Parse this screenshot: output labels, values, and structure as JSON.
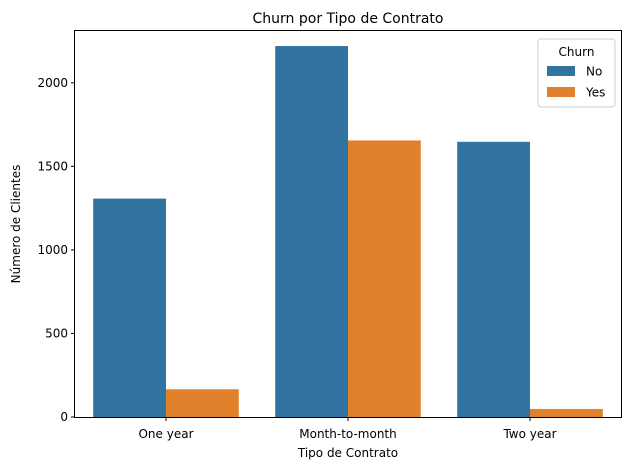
{
  "chart_data": {
    "type": "bar",
    "title": "Churn por Tipo de Contrato",
    "xlabel": "Tipo de Contrato",
    "ylabel": "Número de Clientes",
    "categories": [
      "One year",
      "Month-to-month",
      "Two year"
    ],
    "series": [
      {
        "name": "No",
        "values": [
          1307,
          2220,
          1647
        ],
        "color": "#3274a1"
      },
      {
        "name": "Yes",
        "values": [
          166,
          1655,
          48
        ],
        "color": "#e1812c"
      }
    ],
    "ylim": [
      0,
      2310
    ],
    "yticks": [
      0,
      500,
      1000,
      1500,
      2000
    ],
    "grid": false,
    "legend": {
      "title": "Churn",
      "placement": "top-right"
    }
  }
}
